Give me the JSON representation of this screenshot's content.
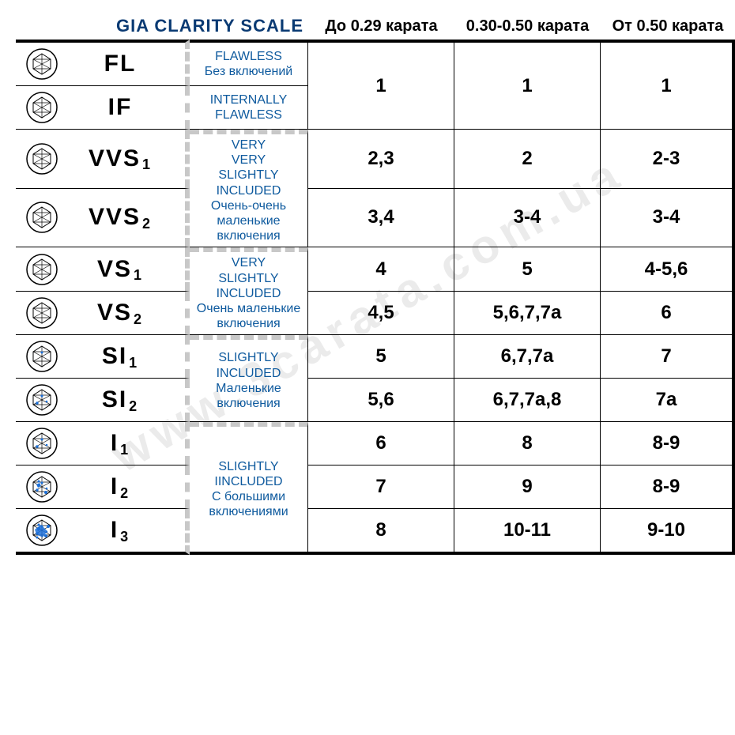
{
  "title": "GIA CLARITY SCALE",
  "watermark": "www.3carata.com.ua",
  "colors": {
    "title_color": "#0a3a73",
    "desc_color": "#0e5a9e",
    "ink": "#000000",
    "dash_gray": "#c8c8c8",
    "inclusion_blue": "#1b6fd8",
    "diamond_stroke": "#000000",
    "background": "#ffffff"
  },
  "columns": [
    "До 0.29 карата",
    "0.30-0.50 карата",
    "От 0.50 карата"
  ],
  "groups": [
    {
      "rows": [
        {
          "grade": "FL",
          "sub": "",
          "inclusions": 0
        },
        {
          "grade": "IF",
          "sub": "",
          "inclusions": 0
        }
      ],
      "desc_en": "FLAWLESS",
      "desc_ru": "Без включений",
      "desc2_en": "INTERNALLY FLAWLESS",
      "desc2_ru": "",
      "values": [
        [
          "1",
          "1",
          "1"
        ]
      ],
      "merged": true
    },
    {
      "rows": [
        {
          "grade": "VVS",
          "sub": "1",
          "inclusions": 0
        },
        {
          "grade": "VVS",
          "sub": "2",
          "inclusions": 0
        }
      ],
      "desc_en": "VERY VERY SLIGHTLY INCLUDED",
      "desc_ru": "Очень-очень маленькие включения",
      "values": [
        [
          "2,3",
          "2",
          "2-3"
        ],
        [
          "3,4",
          "3-4",
          "3-4"
        ]
      ]
    },
    {
      "rows": [
        {
          "grade": "VS",
          "sub": "1",
          "inclusions": 0
        },
        {
          "grade": "VS",
          "sub": "2",
          "inclusions": 0
        }
      ],
      "desc_en": "VERY SLIGHTLY INCLUDED",
      "desc_ru": "Очень маленькие включения",
      "values": [
        [
          "4",
          "5",
          "4-5,6"
        ],
        [
          "4,5",
          "5,6,7,7а",
          "6"
        ]
      ]
    },
    {
      "rows": [
        {
          "grade": "SI",
          "sub": "1",
          "inclusions": 1
        },
        {
          "grade": "SI",
          "sub": "2",
          "inclusions": 2
        }
      ],
      "desc_en": "SLIGHTLY INCLUDED",
      "desc_ru": "Маленькие включения",
      "values": [
        [
          "5",
          "6,7,7а",
          "7"
        ],
        [
          "5,6",
          "6,7,7а,8",
          "7а"
        ]
      ]
    },
    {
      "rows": [
        {
          "grade": "I",
          "sub": "1",
          "inclusions": 2
        },
        {
          "grade": "I",
          "sub": "2",
          "inclusions": 3
        },
        {
          "grade": "I",
          "sub": "3",
          "inclusions": 4
        }
      ],
      "desc_en": "SLIGHTLY IINCLUDED",
      "desc_ru": "С большими включениями",
      "values": [
        [
          "6",
          "8",
          "8-9"
        ],
        [
          "7",
          "9",
          "8-9"
        ],
        [
          "8",
          "10-11",
          "9-10"
        ]
      ]
    }
  ]
}
